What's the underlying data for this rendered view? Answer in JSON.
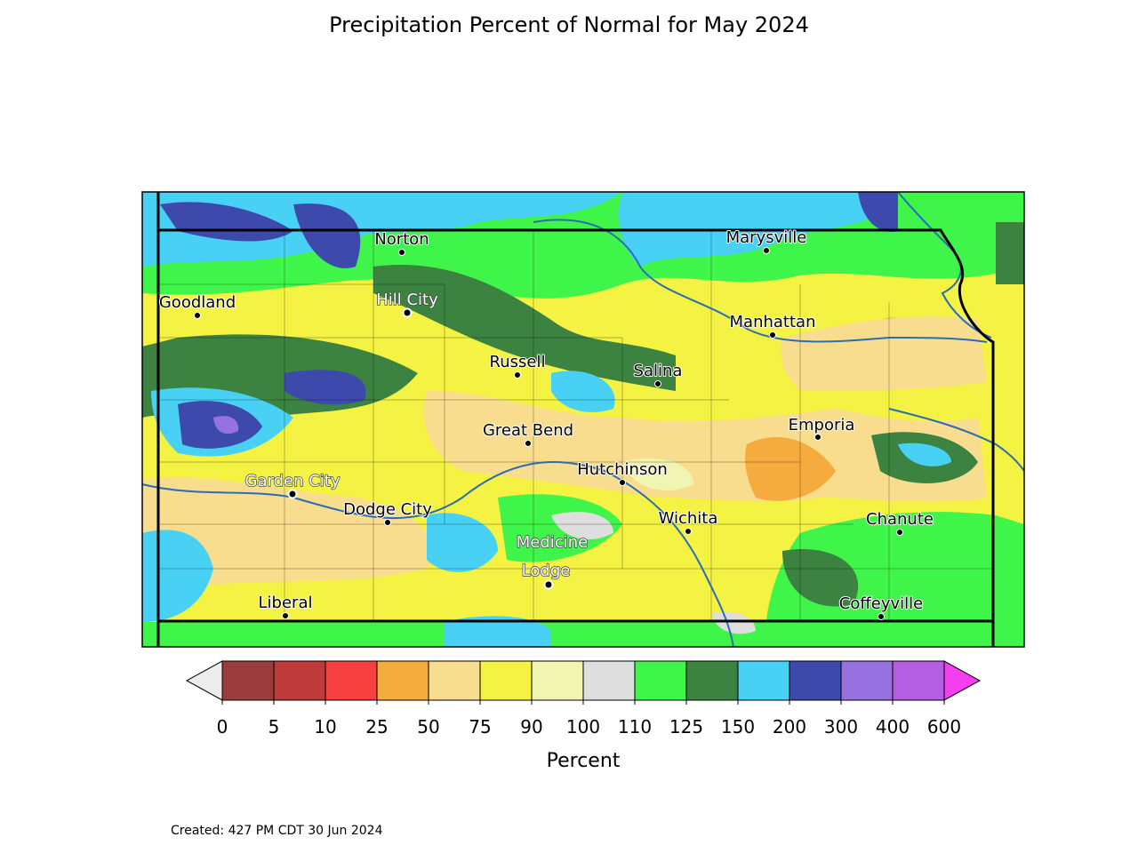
{
  "title": "Precipitation Percent of Normal for May 2024",
  "colorbar": {
    "label": "Percent",
    "ticks": [
      "0",
      "5",
      "10",
      "25",
      "50",
      "75",
      "90",
      "100",
      "110",
      "125",
      "150",
      "200",
      "300",
      "400",
      "600"
    ],
    "colors": [
      "#9b3c3c",
      "#bf3a3a",
      "#f5403f",
      "#f5ab3e",
      "#f9dd8e",
      "#f4f242",
      "#f0f5b2",
      "#dedede",
      "#40f54a",
      "#3c8240",
      "#48d1f5",
      "#3d4aab",
      "#9672e1",
      "#b45ee3"
    ],
    "under_color": "#ececec",
    "over_color": "#f53ef0"
  },
  "cities": [
    {
      "name": "Norton",
      "style": "dark"
    },
    {
      "name": "Marysville",
      "style": "dark"
    },
    {
      "name": "Goodland",
      "style": "dark"
    },
    {
      "name": "Hill City",
      "style": "light"
    },
    {
      "name": "Manhattan",
      "style": "dark"
    },
    {
      "name": "Russell",
      "style": "dark"
    },
    {
      "name": "Salina",
      "style": "dark"
    },
    {
      "name": "Great Bend",
      "style": "dark"
    },
    {
      "name": "Emporia",
      "style": "dark"
    },
    {
      "name": "Hutchinson",
      "style": "dark"
    },
    {
      "name": "Garden City",
      "style": "light"
    },
    {
      "name": "Dodge City",
      "style": "dark"
    },
    {
      "name": "Wichita",
      "style": "dark"
    },
    {
      "name": "Chanute",
      "style": "dark"
    },
    {
      "name": "Medicine",
      "style": "light"
    },
    {
      "name": "Lodge",
      "style": "light"
    },
    {
      "name": "Liberal",
      "style": "dark"
    },
    {
      "name": "Coffeyville",
      "style": "dark"
    }
  ],
  "footer": "Created: 427 PM CDT 30 Jun 2024"
}
